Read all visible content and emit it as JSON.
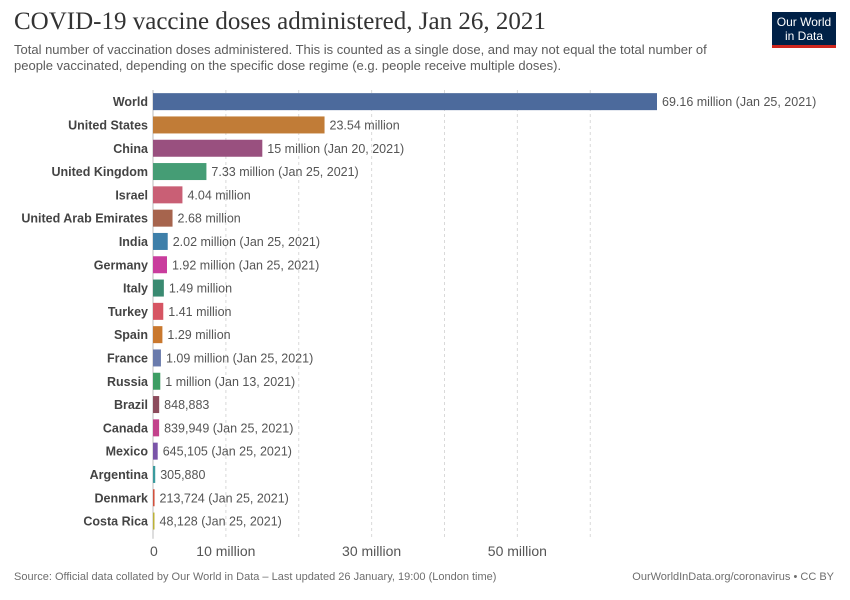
{
  "header": {
    "title": "COVID-19 vaccine doses administered, Jan 26, 2021",
    "subtitle": "Total number of vaccination doses administered. This is counted as a single dose, and may not equal the total number of people vaccinated, depending on the specific dose regime (e.g. people receive multiple doses).",
    "logo_line1": "Our World",
    "logo_line2": "in Data"
  },
  "footer": {
    "source": "Source: Official data collated by Our World in Data – Last updated 26 January, 19:00 (London time)",
    "credit": "OurWorldInData.org/coronavirus • CC BY"
  },
  "chart_data": {
    "type": "bar",
    "orientation": "horizontal",
    "title": "COVID-19 vaccine doses administered, Jan 26, 2021",
    "xlim": [
      0,
      69160000
    ],
    "x_ticks": [
      {
        "value": 0,
        "label": "0"
      },
      {
        "value": 10000000,
        "label": "10 million"
      },
      {
        "value": 30000000,
        "label": "30 million"
      },
      {
        "value": 50000000,
        "label": "50 million"
      }
    ],
    "grid": true,
    "categories": [
      "World",
      "United States",
      "China",
      "United Kingdom",
      "Israel",
      "United Arab Emirates",
      "India",
      "Germany",
      "Italy",
      "Turkey",
      "Spain",
      "France",
      "Russia",
      "Brazil",
      "Canada",
      "Mexico",
      "Argentina",
      "Denmark",
      "Costa Rica"
    ],
    "values": [
      69160000,
      23540000,
      15000000,
      7330000,
      4040000,
      2680000,
      2020000,
      1920000,
      1490000,
      1410000,
      1290000,
      1090000,
      1000000,
      848883,
      839949,
      645105,
      305880,
      213724,
      48128
    ],
    "labels": [
      "69.16 million (Jan 25, 2021)",
      "23.54 million",
      "15 million (Jan 20, 2021)",
      "7.33 million (Jan 25, 2021)",
      "4.04 million",
      "2.68 million",
      "2.02 million (Jan 25, 2021)",
      "1.92 million (Jan 25, 2021)",
      "1.49 million",
      "1.41 million",
      "1.29 million",
      "1.09 million (Jan 25, 2021)",
      "1 million (Jan 13, 2021)",
      "848,883",
      "839,949 (Jan 25, 2021)",
      "645,105 (Jan 25, 2021)",
      "305,880",
      "213,724 (Jan 25, 2021)",
      "48,128 (Jan 25, 2021)"
    ],
    "colors": [
      "#4c6a9c",
      "#c17c37",
      "#99507f",
      "#459d75",
      "#c95f75",
      "#a6644d",
      "#3e7fa9",
      "#c93d9d",
      "#3a8a71",
      "#d65563",
      "#c9782e",
      "#6a7bac",
      "#3d9d63",
      "#8c4b5c",
      "#c2428b",
      "#7a54a8",
      "#3a9a9d",
      "#d1513d",
      "#bcb238"
    ]
  }
}
